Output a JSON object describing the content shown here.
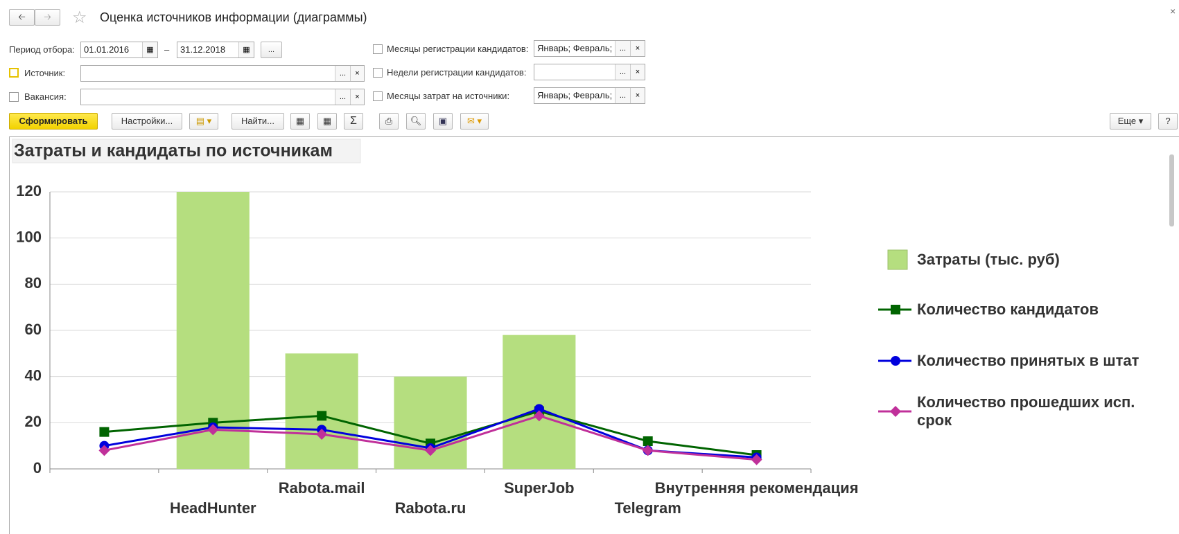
{
  "window": {
    "title": "Оценка источников информации (диаграммы)"
  },
  "filters": {
    "period_label": "Период отбора:",
    "date_from": "01.01.2016",
    "dash": "–",
    "date_to": "31.12.2018",
    "source_label": "Источник:",
    "vacancy_label": "Вакансия:",
    "months_reg_label": "Месяцы регистрации кандидатов:",
    "months_reg_value": "Январь; Февраль;",
    "weeks_reg_label": "Недели регистрации кандидатов:",
    "months_cost_label": "Месяцы затрат на источники:",
    "months_cost_value": "Январь; Февраль;",
    "ellipsis": "...",
    "clear": "×"
  },
  "toolbar": {
    "generate": "Сформировать",
    "settings": "Настройки...",
    "find": "Найти...",
    "more": "Еще",
    "help": "?"
  },
  "chart_data": {
    "type": "bar",
    "title": "Затраты и кандидаты по источникам",
    "categories": [
      null,
      "HeadHunter",
      "Rabota.mail",
      "Rabota.ru",
      "SuperJob",
      "Telegram",
      "Внутренняя рекомендация"
    ],
    "series": [
      {
        "name": "Затраты (тыс. руб)",
        "type": "bar",
        "color": "#b5de7f",
        "values": [
          null,
          120,
          50,
          40,
          58,
          null,
          null
        ]
      },
      {
        "name": "Количество кандидатов",
        "type": "line",
        "marker": "square",
        "color": "#006400",
        "values": [
          16,
          20,
          23,
          11,
          25,
          12,
          6
        ]
      },
      {
        "name": "Количество принятых в штат",
        "type": "line",
        "marker": "circle",
        "color": "#0000dd",
        "values": [
          10,
          18,
          17,
          9,
          26,
          8,
          5
        ]
      },
      {
        "name": "Количество прошедших исп. срок",
        "type": "line",
        "marker": "diamond",
        "color": "#c0309a",
        "values": [
          8,
          17,
          15,
          8,
          23,
          8,
          4
        ]
      }
    ],
    "ylim": [
      0,
      120
    ],
    "yticks": [
      0,
      20,
      40,
      60,
      80,
      100,
      120
    ],
    "grid": true
  }
}
